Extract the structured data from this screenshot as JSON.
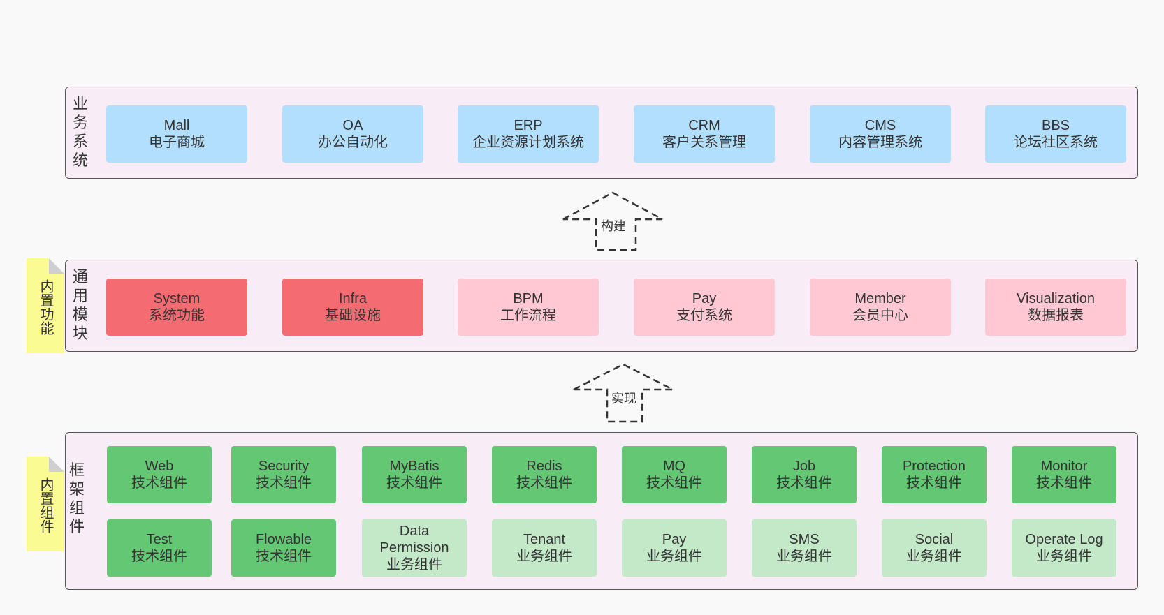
{
  "business": {
    "title": "业务系统",
    "items": [
      {
        "en": "Mall",
        "zh": "电子商城"
      },
      {
        "en": "OA",
        "zh": "办公自动化"
      },
      {
        "en": "ERP",
        "zh": "企业资源计划系统"
      },
      {
        "en": "CRM",
        "zh": "客户关系管理"
      },
      {
        "en": "CMS",
        "zh": "内容管理系统"
      },
      {
        "en": "BBS",
        "zh": "论坛社区系统"
      }
    ]
  },
  "arrows": {
    "build": "构建",
    "implement": "实现"
  },
  "modules": {
    "title": "通用模块",
    "note": "内置功能",
    "items": [
      {
        "en": "System",
        "zh": "系统功能",
        "style": "builtin"
      },
      {
        "en": "Infra",
        "zh": "基础设施",
        "style": "builtin"
      },
      {
        "en": "BPM",
        "zh": "工作流程",
        "style": "optional"
      },
      {
        "en": "Pay",
        "zh": "支付系统",
        "style": "optional"
      },
      {
        "en": "Member",
        "zh": "会员中心",
        "style": "optional"
      },
      {
        "en": "Visualization",
        "zh": "数据报表",
        "style": "optional"
      }
    ]
  },
  "framework": {
    "title": "框架组件",
    "note": "内置组件",
    "row1": [
      {
        "en": "Web",
        "zh": "技术组件"
      },
      {
        "en": "Security",
        "zh": "技术组件"
      },
      {
        "en": "MyBatis",
        "zh": "技术组件"
      },
      {
        "en": "Redis",
        "zh": "技术组件"
      },
      {
        "en": "MQ",
        "zh": "技术组件"
      },
      {
        "en": "Job",
        "zh": "技术组件"
      },
      {
        "en": "Protection",
        "zh": "技术组件"
      },
      {
        "en": "Monitor",
        "zh": "技术组件"
      }
    ],
    "row2": [
      {
        "en": "Test",
        "zh": "技术组件",
        "style": "builtin"
      },
      {
        "en": "Flowable",
        "zh": "技术组件",
        "style": "builtin"
      },
      {
        "en": "Data Permission",
        "zh": "业务组件",
        "style": "optional"
      },
      {
        "en": "Tenant",
        "zh": "业务组件",
        "style": "optional"
      },
      {
        "en": "Pay",
        "zh": "业务组件",
        "style": "optional"
      },
      {
        "en": "SMS",
        "zh": "业务组件",
        "style": "optional"
      },
      {
        "en": "Social",
        "zh": "业务组件",
        "style": "optional"
      },
      {
        "en": "Operate Log",
        "zh": "业务组件",
        "style": "optional"
      }
    ]
  },
  "colors": {
    "business_box": "#b2dffd",
    "module_builtin": "#f56b72",
    "module_optional": "#ffc8d2",
    "component_builtin": "#63c774",
    "component_optional": "#c3e9c8",
    "layer_bg": "#f8ecf6",
    "note_bg": "#fbfb93"
  }
}
